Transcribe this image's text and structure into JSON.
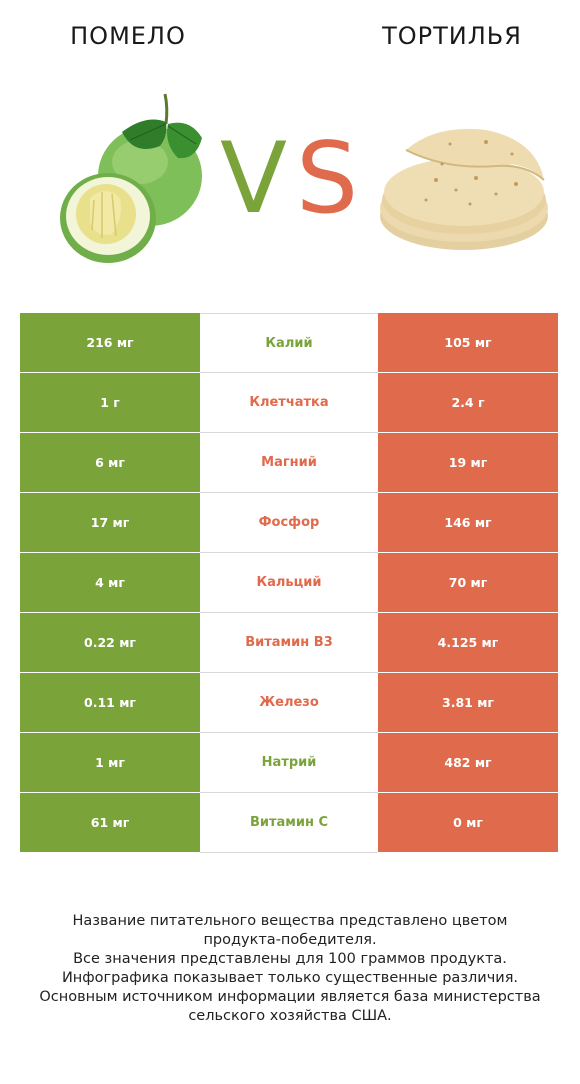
{
  "header": {
    "left_title": "ПОМЕЛО",
    "right_title": "ТОРТИЛЬЯ",
    "vs_v": "V",
    "vs_s": "S",
    "left_image": "pomelo-image",
    "right_image": "tortilla-image"
  },
  "colors": {
    "left_winner": "#7aa33a",
    "right_winner": "#e06a4c"
  },
  "rows": [
    {
      "left": "216 мг",
      "nutrient": "Калий",
      "right": "105 мг",
      "winner": "left"
    },
    {
      "left": "1 г",
      "nutrient": "Клетчатка",
      "right": "2.4 г",
      "winner": "right"
    },
    {
      "left": "6 мг",
      "nutrient": "Магний",
      "right": "19 мг",
      "winner": "right"
    },
    {
      "left": "17 мг",
      "nutrient": "Фосфор",
      "right": "146 мг",
      "winner": "right"
    },
    {
      "left": "4 мг",
      "nutrient": "Кальций",
      "right": "70 мг",
      "winner": "right"
    },
    {
      "left": "0.22 мг",
      "nutrient": "Витамин B3",
      "right": "4.125 мг",
      "winner": "right"
    },
    {
      "left": "0.11 мг",
      "nutrient": "Железо",
      "right": "3.81 мг",
      "winner": "right"
    },
    {
      "left": "1 мг",
      "nutrient": "Натрий",
      "right": "482 мг",
      "winner": "left"
    },
    {
      "left": "61 мг",
      "nutrient": "Витамин C",
      "right": "0 мг",
      "winner": "left"
    }
  ],
  "footer": {
    "line1": "Название питательного вещества представлено цветом",
    "line2": "продукта-победителя.",
    "line3": "Все значения представлены для 100 граммов продукта.",
    "line4": "Инфографика показывает только существенные различия.",
    "line5": "Основным источником информации является база министерства",
    "line6": "сельского хозяйства США."
  }
}
